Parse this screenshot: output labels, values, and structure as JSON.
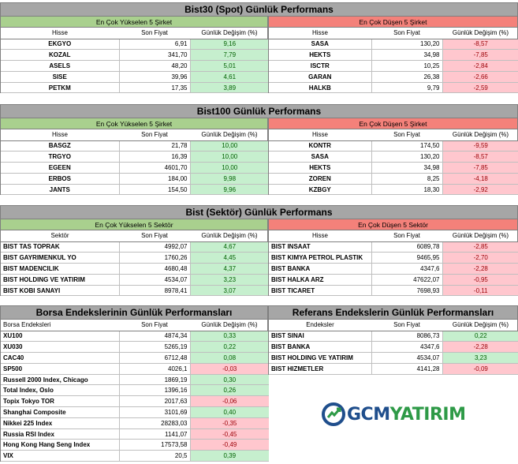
{
  "spot": {
    "title": "Bist30 (Spot) Günlük Performans",
    "rise_band": "En Çok Yükselen 5 Şirket",
    "fall_band": "En Çok Düşen 5 Şirket",
    "col_name": "Hisse",
    "col_price": "Son Fiyat",
    "col_chg": "Günlük Değişim (%)",
    "rise": [
      {
        "name": "EKGYO",
        "price": "6,91",
        "chg": "9,16"
      },
      {
        "name": "KOZAL",
        "price": "341,70",
        "chg": "7,79"
      },
      {
        "name": "ASELS",
        "price": "48,20",
        "chg": "5,01"
      },
      {
        "name": "SISE",
        "price": "39,96",
        "chg": "4,61"
      },
      {
        "name": "PETKM",
        "price": "17,35",
        "chg": "3,89"
      }
    ],
    "fall": [
      {
        "name": "SASA",
        "price": "130,20",
        "chg": "-8,57"
      },
      {
        "name": "HEKTS",
        "price": "34,98",
        "chg": "-7,85"
      },
      {
        "name": "ISCTR",
        "price": "10,25",
        "chg": "-2,84"
      },
      {
        "name": "GARAN",
        "price": "26,38",
        "chg": "-2,66"
      },
      {
        "name": "HALKB",
        "price": "9,79",
        "chg": "-2,59"
      }
    ]
  },
  "b100": {
    "title": "Bist100 Günlük Performans",
    "rise_band": "En Çok Yükselen 5 Şirket",
    "fall_band": "En Çok Düşen 5 Şirket",
    "col_name": "Hisse",
    "col_price": "Son Fiyat",
    "col_chg": "Günlük Değişim (%)",
    "rise": [
      {
        "name": "BASGZ",
        "price": "21,78",
        "chg": "10,00"
      },
      {
        "name": "TRGYO",
        "price": "16,39",
        "chg": "10,00"
      },
      {
        "name": "EGEEN",
        "price": "4601,70",
        "chg": "10,00"
      },
      {
        "name": "ERBOS",
        "price": "184,00",
        "chg": "9,98"
      },
      {
        "name": "JANTS",
        "price": "154,50",
        "chg": "9,96"
      }
    ],
    "fall": [
      {
        "name": "KONTR",
        "price": "174,50",
        "chg": "-9,59"
      },
      {
        "name": "SASA",
        "price": "130,20",
        "chg": "-8,57"
      },
      {
        "name": "HEKTS",
        "price": "34,98",
        "chg": "-7,85"
      },
      {
        "name": "ZOREN",
        "price": "8,25",
        "chg": "-4,18"
      },
      {
        "name": "KZBGY",
        "price": "18,30",
        "chg": "-2,92"
      }
    ]
  },
  "sector": {
    "title": "Bist (Sektör) Günlük Performans",
    "rise_band": "En Çok Yükselen 5 Sektör",
    "fall_band": "En Çok Düşen 5 Sektör",
    "col_name_left": "Sektör",
    "col_name_right": "Hisse",
    "col_price": "Son Fiyat",
    "col_chg": "Günlük Değişim (%)",
    "rise": [
      {
        "name": "BIST TAS TOPRAK",
        "price": "4992,07",
        "chg": "4,67"
      },
      {
        "name": "BIST GAYRIMENKUL YO",
        "price": "1760,26",
        "chg": "4,45"
      },
      {
        "name": "BIST MADENCILIK",
        "price": "4680,48",
        "chg": "4,37"
      },
      {
        "name": "BIST HOLDING VE YATIRIM",
        "price": "4534,07",
        "chg": "3,23"
      },
      {
        "name": "BIST KOBI SANAYI",
        "price": "8978,41",
        "chg": "3,07"
      }
    ],
    "fall": [
      {
        "name": "BIST INSAAT",
        "price": "6089,78",
        "chg": "-2,85"
      },
      {
        "name": "BIST KIMYA PETROL PLASTIK",
        "price": "9465,95",
        "chg": "-2,70"
      },
      {
        "name": "BIST BANKA",
        "price": "4347,6",
        "chg": "-2,28"
      },
      {
        "name": "BIST HALKA ARZ",
        "price": "47622,07",
        "chg": "-0,95"
      },
      {
        "name": "BIST TICARET",
        "price": "7698,93",
        "chg": "-0,11"
      }
    ]
  },
  "global": {
    "title": "Borsa Endekslerinin Günlük Performansları",
    "col_name": "Borsa Endeksleri",
    "col_price": "Son Fiyat",
    "col_chg": "Günlük Değişim (%)",
    "rows": [
      {
        "name": "XU100",
        "price": "4874,34",
        "chg": "0,33"
      },
      {
        "name": "XU030",
        "price": "5265,19",
        "chg": "0,22"
      },
      {
        "name": "CAC40",
        "price": "6712,48",
        "chg": "0,08"
      },
      {
        "name": "SP500",
        "price": "4026,1",
        "chg": "-0,03"
      },
      {
        "name": "Russell 2000 Index, Chicago",
        "price": "1869,19",
        "chg": "0,30"
      },
      {
        "name": "Total Index, Oslo",
        "price": "1396,16",
        "chg": "0,26"
      },
      {
        "name": "Topix Tokyo TOR",
        "price": "2017,63",
        "chg": "-0,06"
      },
      {
        "name": "Shanghai Composite",
        "price": "3101,69",
        "chg": "0,40"
      },
      {
        "name": "Nikkei 225 Index",
        "price": "28283,03",
        "chg": "-0,35"
      },
      {
        "name": "Russia RSI Index",
        "price": "1141,07",
        "chg": "-0,45"
      },
      {
        "name": "Hong Kong Hang Seng Index",
        "price": "17573,58",
        "chg": "-0,49"
      },
      {
        "name": "VIX",
        "price": "20,5",
        "chg": "0,39"
      }
    ]
  },
  "reference": {
    "title": "Referans Endekslerin  Günlük Performansları",
    "col_name": "Endeksler",
    "col_price": "Son Fiyat",
    "col_chg": "Günlük Değişim (%)",
    "rows": [
      {
        "name": "BIST SINAI",
        "price": "8086,73",
        "chg": "0,22"
      },
      {
        "name": "BIST BANKA",
        "price": "4347,6",
        "chg": "-2,28"
      },
      {
        "name": "BIST HOLDING VE YATIRIM",
        "price": "4534,07",
        "chg": "3,23"
      },
      {
        "name": "BIST HIZMETLER",
        "price": "4141,28",
        "chg": "-0,09"
      }
    ]
  },
  "logo": {
    "text_a": "GCM",
    "text_b": "YATIRIM",
    "mark_color": "#2e9a47",
    "brand_blue": "#1f4e8c"
  }
}
